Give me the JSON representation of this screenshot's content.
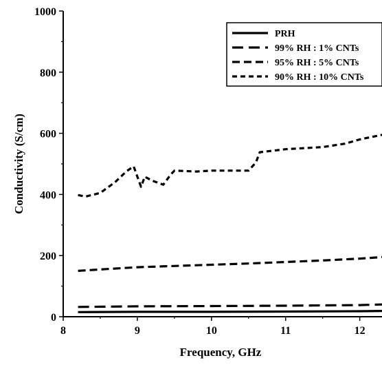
{
  "chart_data": {
    "type": "line",
    "title": "",
    "xlabel": "Frequency, GHz",
    "ylabel": "Conductivity (S/cm)",
    "xlim": [
      8,
      12.3
    ],
    "ylim": [
      0,
      1000
    ],
    "xticks": [
      "8",
      "9",
      "10",
      "11",
      "12"
    ],
    "xtick_values": [
      8,
      9,
      10,
      11,
      12
    ],
    "yticks": [
      "0",
      "200",
      "400",
      "600",
      "800",
      "1000"
    ],
    "ytick_values": [
      0,
      200,
      400,
      600,
      800,
      1000
    ],
    "grid": false,
    "legend": "top-right",
    "series": [
      {
        "name": "PRH",
        "style": "solid",
        "x": [
          8.2,
          9.0,
          10.0,
          11.0,
          12.0,
          12.3
        ],
        "y": [
          15,
          16,
          16,
          17,
          18,
          19
        ]
      },
      {
        "name": "99% RH : 1% CNTs",
        "style": "long-dash",
        "x": [
          8.2,
          9.0,
          10.0,
          11.0,
          12.0,
          12.3
        ],
        "y": [
          32,
          34,
          35,
          36,
          38,
          40
        ]
      },
      {
        "name": "95% RH : 5% CNTs",
        "style": "dash",
        "x": [
          8.2,
          8.6,
          9.0,
          9.5,
          10.0,
          10.5,
          11.0,
          11.5,
          12.0,
          12.3
        ],
        "y": [
          150,
          156,
          162,
          166,
          170,
          174,
          179,
          184,
          190,
          195
        ]
      },
      {
        "name": "90% RH : 10% CNTs",
        "style": "short-dash",
        "x": [
          8.2,
          8.3,
          8.5,
          8.7,
          8.85,
          8.95,
          9.05,
          9.1,
          9.2,
          9.35,
          9.45,
          9.5,
          9.8,
          10.0,
          10.5,
          10.6,
          10.65,
          11.0,
          11.5,
          11.8,
          12.0,
          12.3
        ],
        "y": [
          398,
          393,
          405,
          440,
          475,
          492,
          425,
          458,
          445,
          432,
          465,
          478,
          475,
          478,
          478,
          505,
          538,
          548,
          555,
          566,
          580,
          595
        ]
      }
    ]
  }
}
